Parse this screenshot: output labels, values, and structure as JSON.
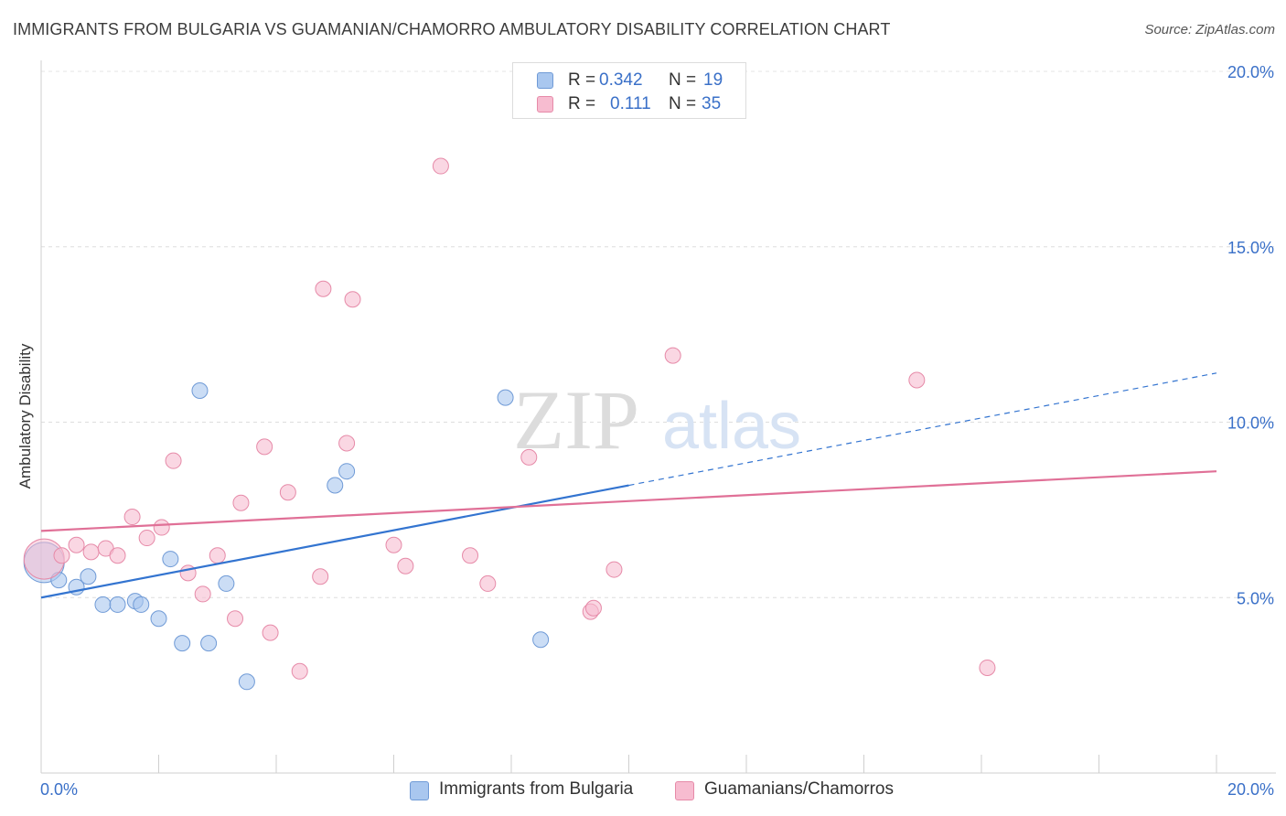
{
  "header": {
    "title": "IMMIGRANTS FROM BULGARIA VS GUAMANIAN/CHAMORRO AMBULATORY DISABILITY CORRELATION CHART",
    "source": "Source: ZipAtlas.com"
  },
  "legend": {
    "rows": [
      {
        "r_label": "R =",
        "r_value": "0.342",
        "n_label": "N =",
        "n_value": "19",
        "color": "#a9c7ef",
        "border": "#6f9ad6"
      },
      {
        "r_label": "R =",
        "r_value": "0.111",
        "n_label": "N =",
        "n_value": "35",
        "color": "#f7bcd0",
        "border": "#e68aa8"
      }
    ]
  },
  "bottom_legend": [
    {
      "label": "Immigrants from Bulgaria",
      "color": "#a9c7ef",
      "border": "#6f9ad6"
    },
    {
      "label": "Guamanians/Chamorros",
      "color": "#f7bcd0",
      "border": "#e68aa8"
    }
  ],
  "watermark": {
    "zip": "ZIP",
    "atlas": "atlas"
  },
  "chart_data": {
    "type": "scatter",
    "title": "IMMIGRANTS FROM BULGARIA VS GUAMANIAN/CHAMORRO AMBULATORY DISABILITY CORRELATION CHART",
    "xlabel": "",
    "ylabel": "Ambulatory Disability",
    "xlim": [
      0,
      20
    ],
    "ylim": [
      0,
      20
    ],
    "x_tick_labels": [
      {
        "value": 0,
        "label": "0.0%"
      },
      {
        "value": 20,
        "label": "20.0%"
      }
    ],
    "y_tick_labels": [
      {
        "value": 5,
        "label": "5.0%"
      },
      {
        "value": 10,
        "label": "10.0%"
      },
      {
        "value": 15,
        "label": "15.0%"
      },
      {
        "value": 20,
        "label": "20.0%"
      }
    ],
    "x_minor_ticks": [
      2,
      4,
      6,
      8,
      10,
      12,
      14,
      16,
      18,
      20
    ],
    "series": [
      {
        "name": "Immigrants from Bulgaria",
        "color": "#a9c7ef",
        "stroke": "#6f9ad6",
        "line_color": "#3374d0",
        "trend": {
          "x0": 0,
          "y0": 5.0,
          "x1": 10,
          "y1": 8.2,
          "dash_to_x": 20,
          "dash_to_y": 11.4
        },
        "points": [
          {
            "x": 0.05,
            "y": 6.0,
            "big": true
          },
          {
            "x": 0.3,
            "y": 5.5
          },
          {
            "x": 0.6,
            "y": 5.3
          },
          {
            "x": 0.8,
            "y": 5.6
          },
          {
            "x": 1.05,
            "y": 4.8
          },
          {
            "x": 1.3,
            "y": 4.8
          },
          {
            "x": 1.6,
            "y": 4.9
          },
          {
            "x": 1.7,
            "y": 4.8
          },
          {
            "x": 2.0,
            "y": 4.4
          },
          {
            "x": 2.2,
            "y": 6.1
          },
          {
            "x": 2.4,
            "y": 3.7
          },
          {
            "x": 2.7,
            "y": 10.9
          },
          {
            "x": 2.85,
            "y": 3.7
          },
          {
            "x": 3.15,
            "y": 5.4
          },
          {
            "x": 3.5,
            "y": 2.6
          },
          {
            "x": 5.0,
            "y": 8.2
          },
          {
            "x": 5.2,
            "y": 8.6
          },
          {
            "x": 7.9,
            "y": 10.7
          },
          {
            "x": 8.5,
            "y": 3.8
          }
        ]
      },
      {
        "name": "Guamanians/Chamorros",
        "color": "#f7bcd0",
        "stroke": "#e68aa8",
        "line_color": "#e07097",
        "trend": {
          "x0": 0,
          "y0": 6.9,
          "x1": 20,
          "y1": 8.6
        },
        "points": [
          {
            "x": 0.05,
            "y": 6.1,
            "big": true
          },
          {
            "x": 0.35,
            "y": 6.2
          },
          {
            "x": 0.6,
            "y": 6.5
          },
          {
            "x": 0.85,
            "y": 6.3
          },
          {
            "x": 1.1,
            "y": 6.4
          },
          {
            "x": 1.3,
            "y": 6.2
          },
          {
            "x": 1.55,
            "y": 7.3
          },
          {
            "x": 1.8,
            "y": 6.7
          },
          {
            "x": 2.05,
            "y": 7.0
          },
          {
            "x": 2.25,
            "y": 8.9
          },
          {
            "x": 2.5,
            "y": 5.7
          },
          {
            "x": 2.75,
            "y": 5.1
          },
          {
            "x": 3.0,
            "y": 6.2
          },
          {
            "x": 3.3,
            "y": 4.4
          },
          {
            "x": 3.4,
            "y": 7.7
          },
          {
            "x": 3.8,
            "y": 9.3
          },
          {
            "x": 3.9,
            "y": 4.0
          },
          {
            "x": 4.2,
            "y": 8.0
          },
          {
            "x": 4.4,
            "y": 2.9
          },
          {
            "x": 4.75,
            "y": 5.6
          },
          {
            "x": 4.8,
            "y": 13.8
          },
          {
            "x": 5.2,
            "y": 9.4
          },
          {
            "x": 5.3,
            "y": 13.5
          },
          {
            "x": 6.0,
            "y": 6.5
          },
          {
            "x": 6.2,
            "y": 5.9
          },
          {
            "x": 6.8,
            "y": 17.3
          },
          {
            "x": 7.3,
            "y": 6.2
          },
          {
            "x": 7.6,
            "y": 5.4
          },
          {
            "x": 8.3,
            "y": 9.0
          },
          {
            "x": 9.35,
            "y": 4.6
          },
          {
            "x": 9.4,
            "y": 4.7
          },
          {
            "x": 9.75,
            "y": 5.8
          },
          {
            "x": 10.75,
            "y": 11.9
          },
          {
            "x": 14.9,
            "y": 11.2
          },
          {
            "x": 16.1,
            "y": 3.0
          }
        ]
      }
    ]
  }
}
